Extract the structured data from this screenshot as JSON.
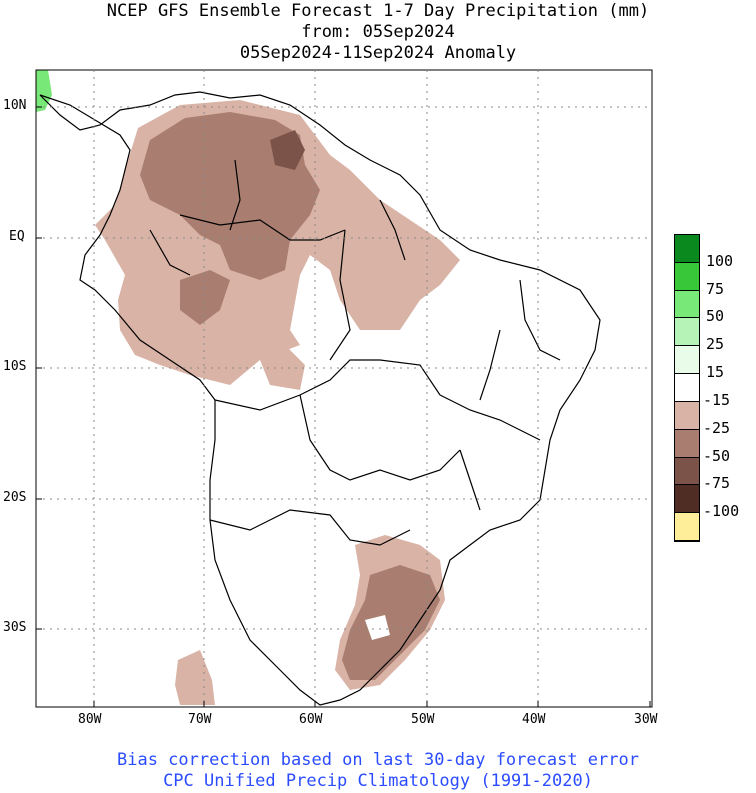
{
  "header": {
    "line1": "NCEP GFS Ensemble Forecast 1-7 Day Precipitation (mm)",
    "line2": "from: 05Sep2024",
    "line3": "05Sep2024-11Sep2024 Anomaly"
  },
  "axes": {
    "lat_labels": [
      "10N",
      "EQ",
      "10S",
      "20S",
      "30S"
    ],
    "lon_labels": [
      "80W",
      "70W",
      "60W",
      "50W",
      "40W",
      "30W"
    ]
  },
  "legend": {
    "items": [
      {
        "label": "100",
        "color": "#0a8a1e"
      },
      {
        "label": "75",
        "color": "#38c738"
      },
      {
        "label": "50",
        "color": "#78e878"
      },
      {
        "label": "25",
        "color": "#b6f3b6"
      },
      {
        "label": "15",
        "color": "#e9fbe9"
      },
      {
        "label": "-15",
        "color": "#ffffff"
      },
      {
        "label": "-25",
        "color": "#d9b3a6"
      },
      {
        "label": "-50",
        "color": "#a97e70"
      },
      {
        "label": "-75",
        "color": "#7b5348"
      },
      {
        "label": "-100",
        "color": "#4f2d24"
      },
      {
        "label": "",
        "color": "#ffee99"
      }
    ]
  },
  "footer": {
    "line1": "Bias correction based on last 30-day forecast error",
    "line2": "CPC Unified Precip Climatology (1991-2020)"
  }
}
